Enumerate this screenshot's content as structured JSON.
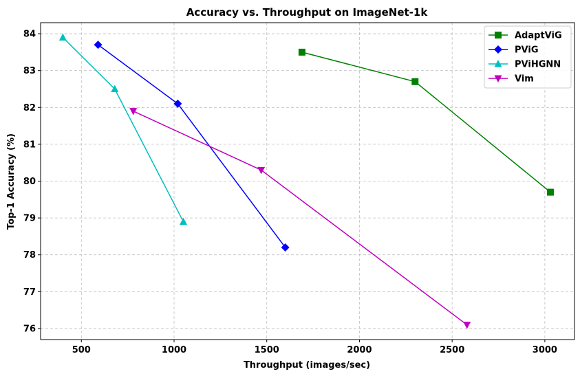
{
  "chart_data": {
    "type": "line",
    "title": "Accuracy vs. Throughput on ImageNet-1k",
    "xlabel": "Throughput (images/sec)",
    "ylabel": "Top-1 Accuracy (%)",
    "xlim": [
      280,
      3160
    ],
    "ylim": [
      75.7,
      84.3
    ],
    "xticks": [
      500,
      1000,
      1500,
      2000,
      2500,
      3000
    ],
    "yticks": [
      76,
      77,
      78,
      79,
      80,
      81,
      82,
      83,
      84
    ],
    "grid": true,
    "legend_position": "top-right",
    "series": [
      {
        "name": "AdaptViG",
        "color": "#008000",
        "marker": "square",
        "x": [
          1690,
          2300,
          3030
        ],
        "y": [
          83.5,
          82.7,
          79.7
        ]
      },
      {
        "name": "PViG",
        "color": "#0000ff",
        "marker": "diamond",
        "x": [
          590,
          1020,
          1600
        ],
        "y": [
          83.7,
          82.1,
          78.2
        ]
      },
      {
        "name": "PViHGNN",
        "color": "#00bfbf",
        "marker": "triangle-up",
        "x": [
          400,
          680,
          1050
        ],
        "y": [
          83.9,
          82.5,
          78.9
        ]
      },
      {
        "name": "Vim",
        "color": "#bf00bf",
        "marker": "triangle-down",
        "x": [
          780,
          1470,
          2580
        ],
        "y": [
          81.9,
          80.3,
          76.1
        ]
      }
    ]
  }
}
